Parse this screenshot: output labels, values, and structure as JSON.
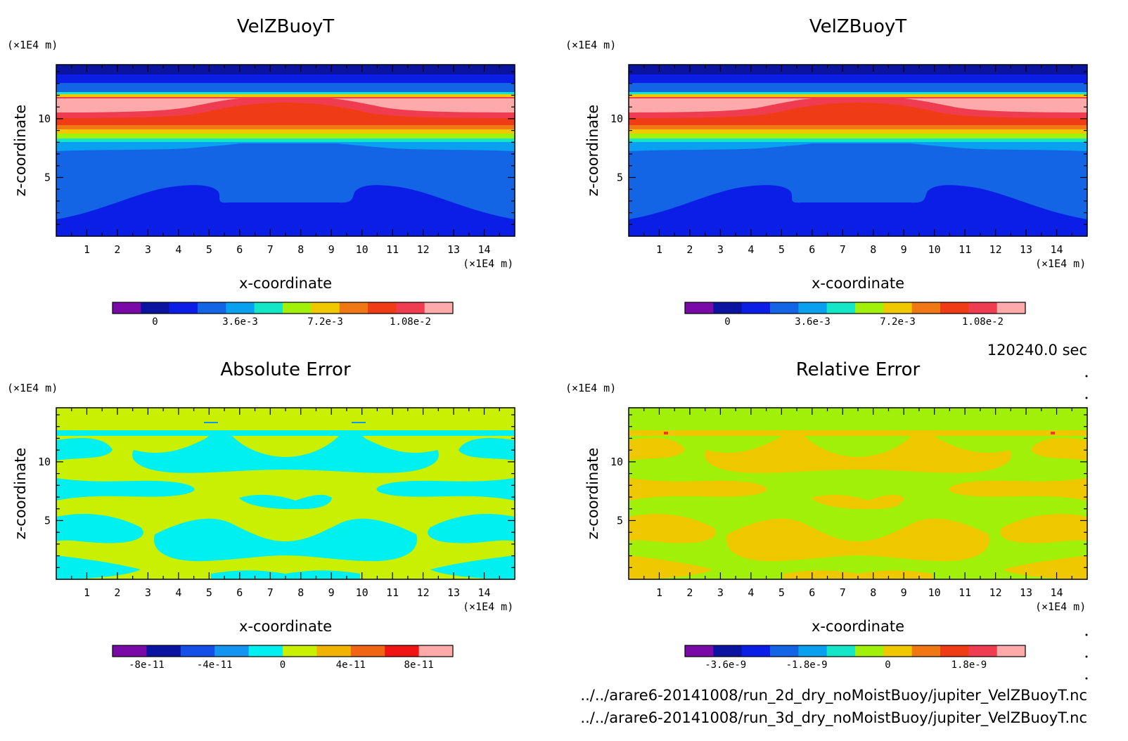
{
  "chart_data": [
    {
      "type": "heatmap",
      "title": "VelZBuoyT",
      "xlabel": "x-coordinate",
      "ylabel": "z-coordinate",
      "x_unit": "(×1E4 m)",
      "y_unit": "(×1E4 m)",
      "xlim": [
        0,
        15
      ],
      "ylim": [
        0,
        14.6
      ],
      "x_ticks": [
        1,
        2,
        3,
        4,
        5,
        6,
        7,
        8,
        9,
        10,
        11,
        12,
        13,
        14
      ],
      "y_ticks": [
        5,
        10
      ],
      "colorbar": {
        "colors": [
          "#7a0aa8",
          "#0a14a0",
          "#0a1ee6",
          "#1464e6",
          "#0aa0f0",
          "#14e6c8",
          "#a0f00a",
          "#f0c800",
          "#f07814",
          "#f03c14",
          "#f03c50",
          "#ffaaaa"
        ],
        "tick_labels": [
          "0",
          "3.6e-3",
          "7.2e-3",
          "1.08e-2"
        ],
        "tick_values": [
          0,
          0.0036,
          0.0072,
          0.0108
        ],
        "range": [
          -0.0018,
          0.0126
        ]
      }
    },
    {
      "type": "heatmap",
      "title": "VelZBuoyT",
      "xlabel": "x-coordinate",
      "ylabel": "z-coordinate",
      "x_unit": "(×1E4 m)",
      "y_unit": "(×1E4 m)",
      "xlim": [
        0,
        15
      ],
      "ylim": [
        0,
        14.6
      ],
      "x_ticks": [
        1,
        2,
        3,
        4,
        5,
        6,
        7,
        8,
        9,
        10,
        11,
        12,
        13,
        14
      ],
      "y_ticks": [
        5,
        10
      ],
      "colorbar": {
        "colors": [
          "#7a0aa8",
          "#0a14a0",
          "#0a1ee6",
          "#1464e6",
          "#0aa0f0",
          "#14e6c8",
          "#a0f00a",
          "#f0c800",
          "#f07814",
          "#f03c14",
          "#f03c50",
          "#ffaaaa"
        ],
        "tick_labels": [
          "0",
          "3.6e-3",
          "7.2e-3",
          "1.08e-2"
        ],
        "tick_values": [
          0,
          0.0036,
          0.0072,
          0.0108
        ],
        "range": [
          -0.0018,
          0.0126
        ]
      }
    },
    {
      "type": "heatmap",
      "title": "Absolute Error",
      "xlabel": "x-coordinate",
      "ylabel": "z-coordinate",
      "x_unit": "(×1E4 m)",
      "y_unit": "(×1E4 m)",
      "xlim": [
        0,
        15
      ],
      "ylim": [
        0,
        14.6
      ],
      "x_ticks": [
        1,
        2,
        3,
        4,
        5,
        6,
        7,
        8,
        9,
        10,
        11,
        12,
        13,
        14
      ],
      "y_ticks": [
        5,
        10
      ],
      "colorbar": {
        "colors": [
          "#7a0aa8",
          "#0a14a0",
          "#1450e6",
          "#1496f0",
          "#00f0f0",
          "#c8f000",
          "#f0b400",
          "#f06414",
          "#f01414",
          "#ffaaaa"
        ],
        "tick_labels": [
          "-8e-11",
          "-4e-11",
          "0",
          "4e-11",
          "8e-11"
        ],
        "tick_values": [
          -8e-11,
          -4e-11,
          0,
          4e-11,
          8e-11
        ],
        "range": [
          -1e-10,
          1e-10
        ]
      }
    },
    {
      "type": "heatmap",
      "title": "Relative Error",
      "xlabel": "x-coordinate",
      "ylabel": "z-coordinate",
      "x_unit": "(×1E4 m)",
      "y_unit": "(×1E4 m)",
      "xlim": [
        0,
        15
      ],
      "ylim": [
        0,
        14.6
      ],
      "x_ticks": [
        1,
        2,
        3,
        4,
        5,
        6,
        7,
        8,
        9,
        10,
        11,
        12,
        13,
        14
      ],
      "y_ticks": [
        5,
        10
      ],
      "colorbar": {
        "colors": [
          "#7a0aa8",
          "#0a14a0",
          "#0a1ee6",
          "#1464e6",
          "#0aa0f0",
          "#14e6c8",
          "#a0f00a",
          "#f0c800",
          "#f07814",
          "#f03c14",
          "#f03c50",
          "#ffaaaa"
        ],
        "tick_labels": [
          "-3.6e-9",
          "-1.8e-9",
          "0",
          "1.8e-9"
        ],
        "tick_values": [
          -3.6e-09,
          -1.8e-09,
          0,
          1.8e-09
        ],
        "range": [
          -4.5e-09,
          3.05e-09
        ]
      }
    }
  ],
  "info": {
    "time": "120240.0 sec",
    "file1": "../../arare6-20141008/run_2d_dry_noMoistBuoy/jupiter_VelZBuoyT.nc",
    "file2": "../../arare6-20141008/run_3d_dry_noMoistBuoy/jupiter_VelZBuoyT.nc"
  }
}
